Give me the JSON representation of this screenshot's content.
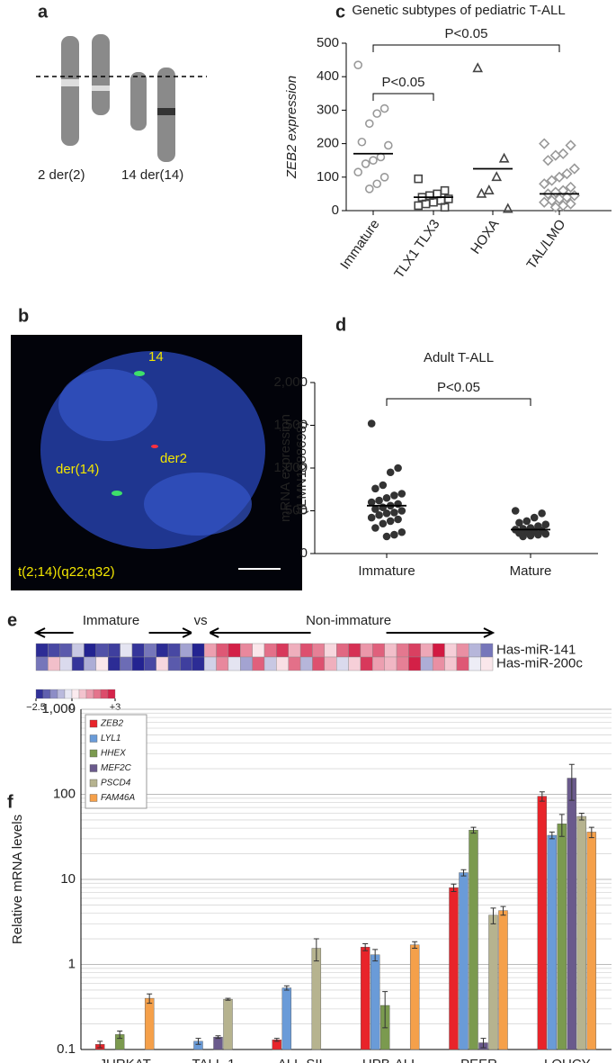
{
  "panel_labels": [
    "a",
    "b",
    "c",
    "d",
    "e",
    "f"
  ],
  "karyotype": {
    "labels": [
      "2 der(2)",
      "14 der(14)"
    ]
  },
  "fish": {
    "labels": [
      "14",
      "der2",
      "der(14)",
      "t(2;14)(q22;q32)"
    ]
  },
  "chart_data": [
    {
      "type": "strip",
      "title": "Genetic subtypes of pediatric T-ALL",
      "ylabel": "ZEB2 expression",
      "categories": [
        "Immature",
        "TLX1 TLX3",
        "HOXA",
        "TAL/LMO"
      ],
      "points": [
        [
          435,
          305,
          290,
          260,
          205,
          195,
          160,
          150,
          140,
          115,
          100,
          80,
          65
        ],
        [
          95,
          60,
          50,
          45,
          40,
          35,
          30,
          25,
          20,
          15,
          10
        ],
        [
          425,
          155,
          100,
          60,
          50,
          5
        ],
        [
          200,
          195,
          170,
          165,
          150,
          125,
          110,
          100,
          90,
          80,
          70,
          60,
          55,
          50,
          45,
          40,
          35,
          30,
          25,
          20,
          15,
          10
        ]
      ],
      "medians": [
        170,
        40,
        125,
        50
      ],
      "markers": [
        "circle",
        "square",
        "triangle",
        "diamond"
      ],
      "colors": [
        "#999999",
        "#444444",
        "#444444",
        "#999999"
      ],
      "annotations": [
        "P<0.05",
        "P<0.05"
      ],
      "ylim": [
        0,
        500
      ],
      "yticks": [
        0,
        100,
        200,
        300,
        400,
        500
      ]
    },
    {
      "type": "strip",
      "title": "Adult T-ALL",
      "ylabel": [
        "mRNA expression",
        "(ILMN1688698)"
      ],
      "categories": [
        "Immature",
        "Mature"
      ],
      "points": [
        [
          1520,
          1000,
          950,
          800,
          760,
          700,
          680,
          650,
          620,
          600,
          580,
          560,
          540,
          520,
          500,
          480,
          470,
          450,
          420,
          400,
          380,
          350,
          300,
          250,
          220,
          200
        ],
        [
          500,
          470,
          420,
          380,
          360,
          340,
          320,
          300,
          290,
          280,
          270,
          260,
          250,
          240,
          230,
          220,
          210,
          200
        ]
      ],
      "medians": [
        560,
        280
      ],
      "markers": [
        "circle",
        "circle"
      ],
      "colors": [
        "#333333",
        "#333333"
      ],
      "annotations": [
        "P<0.05"
      ],
      "ylim": [
        0,
        2000
      ],
      "yticks": [
        0,
        500,
        {
          "value": 1000,
          "label": "1,000"
        },
        {
          "value": 1500,
          "label": "1,500"
        },
        {
          "value": 2000,
          "label": "2,000"
        }
      ]
    },
    {
      "type": "heatmap",
      "group_labels": [
        "Immature",
        "vs",
        "Non-immature"
      ],
      "rows": [
        "Has-miR-141",
        "Has-miR-200c"
      ],
      "values": [
        [
          -2.3,
          -2.0,
          -1.8,
          -0.6,
          -2.4,
          -1.9,
          -2.1,
          -0.3,
          -2.2,
          -1.5,
          -2.3,
          -2.0,
          -1.0,
          -2.4,
          1.2,
          2.1,
          2.8,
          1.5,
          0.3,
          1.8,
          2.5,
          1.0,
          2.2,
          1.6,
          0.5,
          1.9,
          2.6,
          1.3,
          2.0,
          0.8,
          1.7,
          2.4,
          1.1,
          2.9,
          0.6,
          1.4,
          -0.8,
          -1.5
        ],
        [
          -1.5,
          0.8,
          -0.4,
          -2.2,
          -0.9,
          0.3,
          -2.3,
          -1.6,
          -2.4,
          -2.0,
          0.5,
          -1.8,
          -2.1,
          -2.3,
          -0.5,
          1.5,
          -0.3,
          -1.0,
          2.0,
          -0.6,
          0.4,
          1.8,
          -0.8,
          2.2,
          1.0,
          -0.4,
          0.6,
          2.5,
          1.2,
          0.9,
          1.6,
          2.8,
          -0.9,
          1.4,
          0.7,
          2.1,
          -0.2,
          0.3
        ]
      ],
      "clim": [
        -2.5,
        3
      ],
      "colors": [
        "#1a1a8c",
        "#ffffff",
        "#d0103a"
      ],
      "colorbar_ticks": [
        {
          "value": -2.5,
          "label": "−2.5"
        },
        0,
        {
          "value": 3,
          "label": "+3"
        }
      ]
    },
    {
      "type": "bar",
      "ylabel": "Relative mRNA levels",
      "log": true,
      "grid": true,
      "categories": [
        "JURKAT",
        "TALL-1",
        "ALL-SIL",
        "HPB-ALL",
        "PEER",
        "LOUCY"
      ],
      "series": [
        {
          "name": "ZEB2",
          "color": "#e8242a",
          "values": [
            0.115,
            null,
            0.13,
            1.6,
            8,
            95
          ],
          "errors": [
            0.01,
            null,
            0.005,
            0.15,
            0.8,
            12
          ]
        },
        {
          "name": "LYL1",
          "color": "#6a9bd8",
          "values": [
            null,
            0.125,
            0.53,
            1.3,
            12,
            33
          ],
          "errors": [
            null,
            0.01,
            0.03,
            0.2,
            1,
            3
          ]
        },
        {
          "name": "HHEX",
          "color": "#7b9a4f",
          "values": [
            0.15,
            null,
            null,
            0.33,
            38,
            45
          ],
          "errors": [
            0.015,
            null,
            null,
            0.15,
            3,
            13
          ]
        },
        {
          "name": "MEF2C",
          "color": "#6a5a8c",
          "values": [
            null,
            0.14,
            null,
            null,
            0.12,
            155
          ],
          "errors": [
            null,
            0.005,
            null,
            null,
            0.015,
            70
          ]
        },
        {
          "name": "PSCD4",
          "color": "#b6b38f",
          "values": [
            null,
            0.39,
            1.55,
            null,
            3.8,
            55
          ],
          "errors": [
            null,
            0.01,
            0.45,
            null,
            0.8,
            5
          ]
        },
        {
          "name": "FAM46A",
          "color": "#f5a04a",
          "values": [
            0.4,
            null,
            null,
            1.7,
            4.3,
            36
          ],
          "errors": [
            0.05,
            null,
            null,
            0.15,
            0.5,
            5
          ]
        }
      ],
      "ylim": [
        0.1,
        1000
      ],
      "yticks": [
        0.1,
        1,
        10,
        100,
        {
          "value": 1000,
          "label": "1,000"
        }
      ]
    }
  ]
}
